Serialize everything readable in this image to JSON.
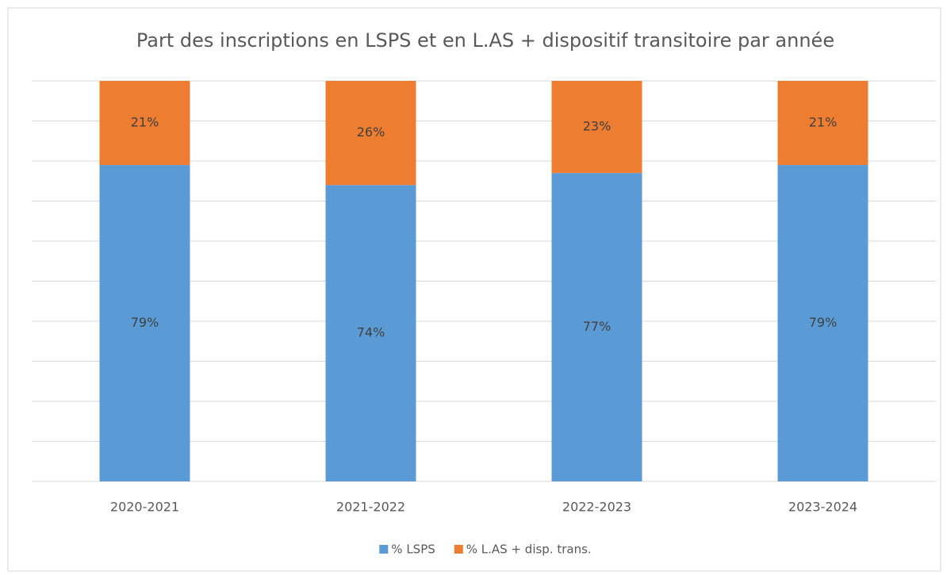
{
  "chart_data": {
    "type": "stacked_bar",
    "title": "Part des inscriptions en LSPS et en L.AS + dispositif transitoire par année",
    "categories": [
      "2020-2021",
      "2021-2022",
      "2022-2023",
      "2023-2024"
    ],
    "series": [
      {
        "name": "% LSPS",
        "color": "#5b9bd5",
        "values": [
          79,
          74,
          77,
          79
        ],
        "value_labels": [
          "79%",
          "74%",
          "77%",
          "79%"
        ]
      },
      {
        "name": "% L.AS + disp. trans.",
        "color": "#ed7d31",
        "values": [
          21,
          26,
          23,
          21
        ],
        "value_labels": [
          "21%",
          "26%",
          "23%",
          "21%"
        ]
      }
    ],
    "ylim": [
      0,
      100
    ],
    "yticks": [
      0,
      10,
      20,
      30,
      40,
      50,
      60,
      70,
      80,
      90,
      100
    ],
    "grid": true,
    "legend": "bottom"
  }
}
